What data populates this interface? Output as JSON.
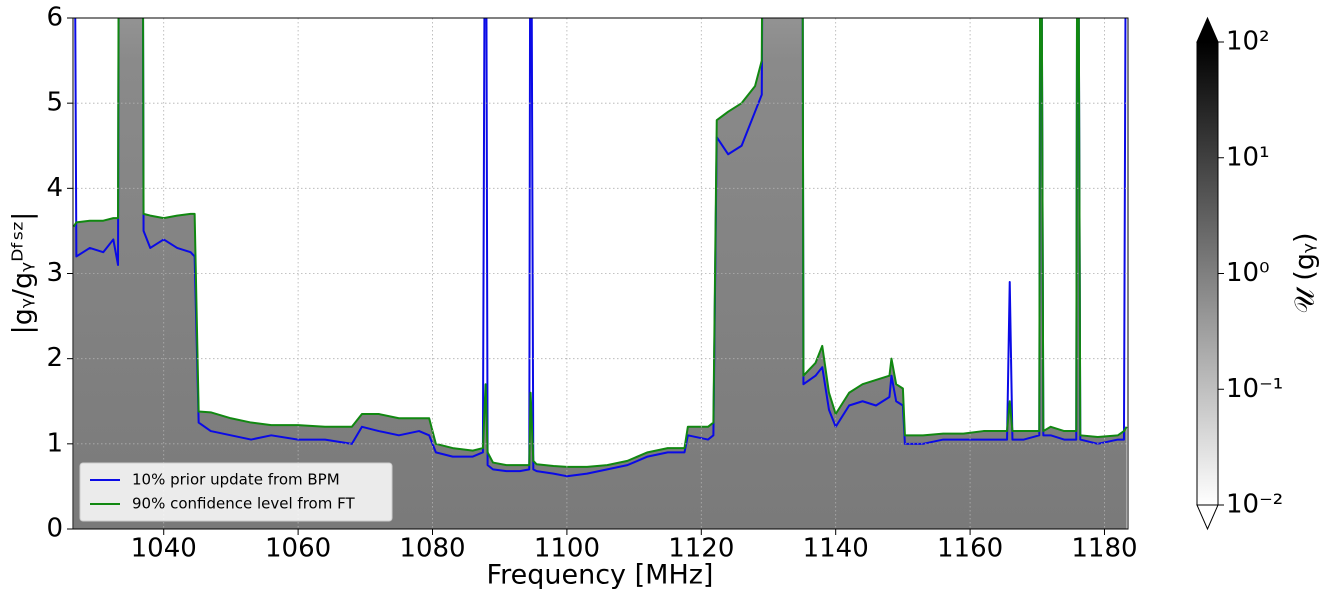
{
  "chart_data": {
    "type": "line",
    "xlabel": "Frequency [MHz]",
    "ylabel": "|gᵧ/gᵧᴰᶠˢᶻ|",
    "x": [
      1026.6,
      1027,
      1029,
      1031,
      1032.5,
      1033.2,
      1033.4,
      1036.8,
      1037,
      1038,
      1040,
      1042,
      1044,
      1044.6,
      1045.2,
      1047,
      1050,
      1053,
      1056,
      1060,
      1064,
      1068,
      1069.5,
      1072,
      1075,
      1078,
      1079.5,
      1080.5,
      1083,
      1086,
      1087.5,
      1087.9,
      1088.2,
      1089,
      1091,
      1093,
      1094.4,
      1094.6,
      1095,
      1095.5,
      1098,
      1100,
      1103,
      1106,
      1109,
      1112,
      1115,
      1117.5,
      1118,
      1121,
      1121.8,
      1122.3,
      1124,
      1126,
      1128,
      1129,
      1129.3,
      1135,
      1135.2,
      1137,
      1138,
      1139,
      1140,
      1142,
      1144,
      1146,
      1148,
      1148.3,
      1149,
      1150,
      1150.3,
      1153,
      1156,
      1159,
      1162,
      1165.5,
      1165.9,
      1166.3,
      1168,
      1170.3,
      1170.5,
      1170.9,
      1172,
      1174,
      1175.8,
      1176,
      1176.4,
      1179,
      1182,
      1182.9,
      1183.3
    ],
    "series": [
      {
        "name": "10% prior update from BPM",
        "color": "#0a0ae6",
        "values": [
          10,
          3.2,
          3.3,
          3.25,
          3.4,
          3.1,
          10,
          10,
          3.5,
          3.3,
          3.4,
          3.3,
          3.25,
          3.2,
          1.25,
          1.15,
          1.1,
          1.05,
          1.1,
          1.05,
          1.05,
          1.0,
          1.2,
          1.15,
          1.1,
          1.15,
          1.1,
          0.9,
          0.85,
          0.85,
          0.9,
          10,
          0.75,
          0.7,
          0.68,
          0.68,
          0.7,
          10,
          0.7,
          0.68,
          0.65,
          0.62,
          0.65,
          0.7,
          0.75,
          0.85,
          0.9,
          0.9,
          1.1,
          1.05,
          1.1,
          4.6,
          4.4,
          4.5,
          4.9,
          5.1,
          10,
          10,
          1.7,
          1.8,
          1.9,
          1.4,
          1.2,
          1.45,
          1.5,
          1.45,
          1.55,
          1.8,
          1.5,
          1.45,
          1.0,
          1.0,
          1.05,
          1.05,
          1.05,
          1.05,
          2.9,
          1.05,
          1.05,
          1.1,
          10,
          1.1,
          1.1,
          1.05,
          1.05,
          10,
          1.05,
          1.0,
          1.05,
          1.05,
          10
        ]
      },
      {
        "name": "90% confidence level from FT",
        "color": "#118811",
        "values": [
          3.55,
          3.6,
          3.62,
          3.62,
          3.65,
          3.65,
          10,
          10,
          3.7,
          3.68,
          3.65,
          3.68,
          3.7,
          3.7,
          1.38,
          1.37,
          1.3,
          1.25,
          1.22,
          1.22,
          1.2,
          1.2,
          1.35,
          1.35,
          1.3,
          1.3,
          1.3,
          1.0,
          0.95,
          0.92,
          0.95,
          1.7,
          0.9,
          0.78,
          0.75,
          0.75,
          0.75,
          1.6,
          0.8,
          0.76,
          0.74,
          0.73,
          0.73,
          0.75,
          0.8,
          0.9,
          0.95,
          0.95,
          1.2,
          1.2,
          1.25,
          4.8,
          4.9,
          5.0,
          5.2,
          5.5,
          10,
          10,
          1.8,
          1.95,
          2.15,
          1.6,
          1.35,
          1.6,
          1.7,
          1.75,
          1.8,
          2.0,
          1.7,
          1.65,
          1.1,
          1.1,
          1.12,
          1.12,
          1.15,
          1.15,
          1.5,
          1.15,
          1.15,
          1.15,
          10,
          1.15,
          1.2,
          1.15,
          1.15,
          10,
          1.1,
          1.08,
          1.1,
          1.15,
          1.2
        ]
      }
    ],
    "xlim": [
      1026.5,
      1183.5
    ],
    "xticks": [
      1040,
      1060,
      1080,
      1100,
      1120,
      1140,
      1160,
      1180
    ],
    "ylim": [
      0,
      6
    ],
    "yticks": [
      0,
      1,
      2,
      3,
      4,
      5,
      6
    ],
    "grid": true,
    "legend": "lower left",
    "colorbar": {
      "label": "𝒰 (gᵧ)",
      "log": true,
      "lim": [
        0.01,
        100
      ],
      "ticks": [
        {
          "value": 0.01,
          "label": "10⁻²"
        },
        {
          "value": 0.1,
          "label": "10⁻¹"
        },
        {
          "value": 1,
          "label": "10⁰"
        },
        {
          "value": 10,
          "label": "10¹"
        },
        {
          "value": 100,
          "label": "10²"
        }
      ]
    }
  }
}
